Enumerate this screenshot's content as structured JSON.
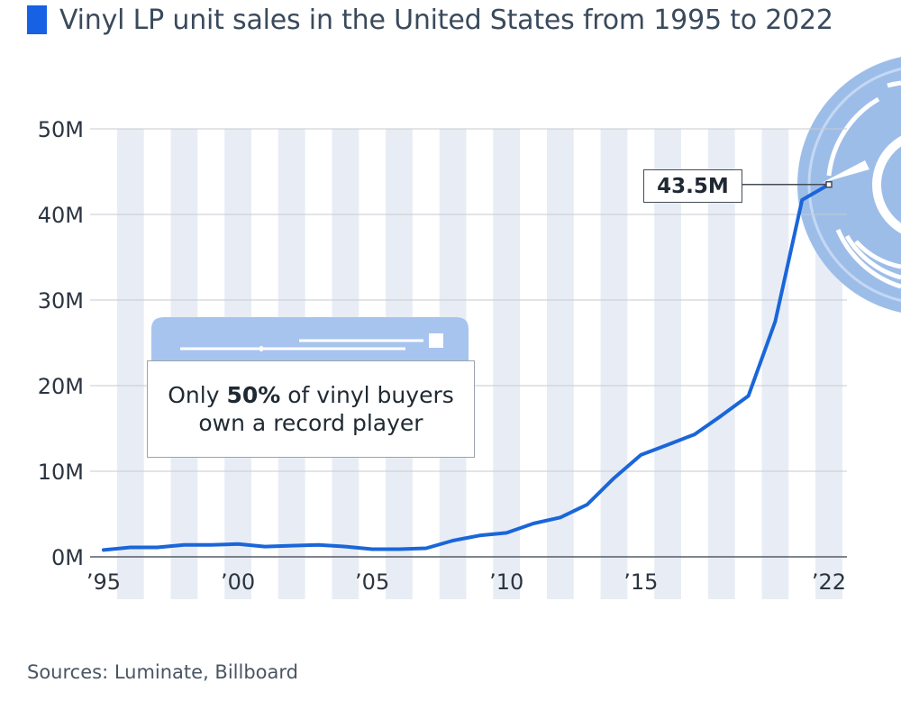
{
  "title": "Vinyl LP unit sales in the United States from 1995 to 2022",
  "source": "Sources: Luminate, Billboard",
  "callout": {
    "prefix": "Only ",
    "highlight": "50%",
    "suffix": " of vinyl buyers",
    "line2": "own a record player"
  },
  "colors": {
    "line": "#1a66d9",
    "stripe": "#e8edf5",
    "accent": "#1761e5",
    "illustration": "#a7c4ef"
  },
  "chart_data": {
    "type": "line",
    "title": "Vinyl LP unit sales in the United States from 1995 to 2022",
    "x": [
      1995,
      1996,
      1997,
      1998,
      1999,
      2000,
      2001,
      2002,
      2003,
      2004,
      2005,
      2006,
      2007,
      2008,
      2009,
      2010,
      2011,
      2012,
      2013,
      2014,
      2015,
      2016,
      2017,
      2018,
      2019,
      2020,
      2021,
      2022
    ],
    "x_tick_values": [
      1995,
      2000,
      2005,
      2010,
      2015,
      2022
    ],
    "x_tick_labels": [
      "’95",
      "’00",
      "’05",
      "’10",
      "’15",
      "’22"
    ],
    "series": [
      {
        "values": [
          0.8,
          1.1,
          1.1,
          1.4,
          1.4,
          1.5,
          1.2,
          1.3,
          1.4,
          1.2,
          0.9,
          0.9,
          1.0,
          1.9,
          2.5,
          2.8,
          3.9,
          4.6,
          6.1,
          9.2,
          11.9,
          13.1,
          14.3,
          16.5,
          18.8,
          27.5,
          41.7,
          43.5
        ]
      }
    ],
    "ylim": [
      0,
      50
    ],
    "y_ticks": [
      0,
      10,
      20,
      30,
      40,
      50
    ],
    "y_tick_labels": [
      "0M",
      "10M",
      "20M",
      "30M",
      "40M",
      "50M"
    ],
    "last_value_label": "43.5M",
    "grid": true
  }
}
